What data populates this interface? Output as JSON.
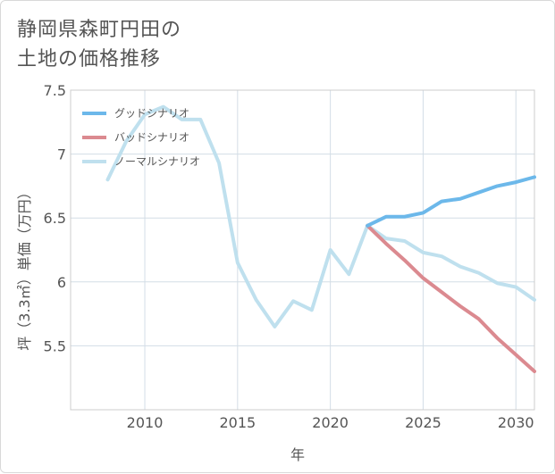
{
  "header": {
    "title_line1": "静岡県森町円田の",
    "title_line2": "土地の価格推移"
  },
  "chart_data": {
    "type": "line",
    "title": "静岡県森町円田の土地の価格推移",
    "xlabel": "年",
    "ylabel": "坪（3.3㎡）単価（万円）",
    "xlim": [
      2006,
      2031
    ],
    "ylim": [
      5.0,
      7.5
    ],
    "grid": true,
    "legend_position": "top-left",
    "x_ticks": [
      2010,
      2015,
      2020,
      2025,
      2030
    ],
    "x_tick_labels": [
      "2010",
      "2015",
      "2020",
      "2025",
      "2030"
    ],
    "y_ticks": [
      5.5,
      6,
      6.5,
      7,
      7.5
    ],
    "y_tick_labels": [
      "5.5",
      "6",
      "6.5",
      "7",
      "7.5"
    ],
    "series": [
      {
        "name": "グッドシナリオ",
        "color": "#6cb8ea",
        "x": [
          2022,
          2023,
          2024,
          2025,
          2026,
          2027,
          2028,
          2029,
          2030,
          2031
        ],
        "values": [
          6.44,
          6.51,
          6.51,
          6.54,
          6.63,
          6.65,
          6.7,
          6.75,
          6.78,
          6.82
        ]
      },
      {
        "name": "バッドシナリオ",
        "color": "#db8a90",
        "x": [
          2022,
          2023,
          2024,
          2025,
          2026,
          2027,
          2028,
          2029,
          2030,
          2031
        ],
        "values": [
          6.44,
          6.3,
          6.17,
          6.03,
          5.92,
          5.81,
          5.71,
          5.56,
          5.43,
          5.3
        ]
      },
      {
        "name": "ノーマルシナリオ",
        "color": "#bfe0ee",
        "x": [
          2008,
          2009,
          2010,
          2011,
          2012,
          2013,
          2014,
          2015,
          2016,
          2017,
          2018,
          2019,
          2020,
          2021,
          2022,
          2023,
          2024,
          2025,
          2026,
          2027,
          2028,
          2029,
          2030,
          2031
        ],
        "values": [
          6.8,
          7.1,
          7.31,
          7.37,
          7.27,
          7.27,
          6.93,
          6.15,
          5.86,
          5.65,
          5.85,
          5.78,
          6.25,
          6.06,
          6.44,
          6.34,
          6.32,
          6.23,
          6.2,
          6.12,
          6.07,
          5.99,
          5.96,
          5.86
        ]
      }
    ]
  }
}
